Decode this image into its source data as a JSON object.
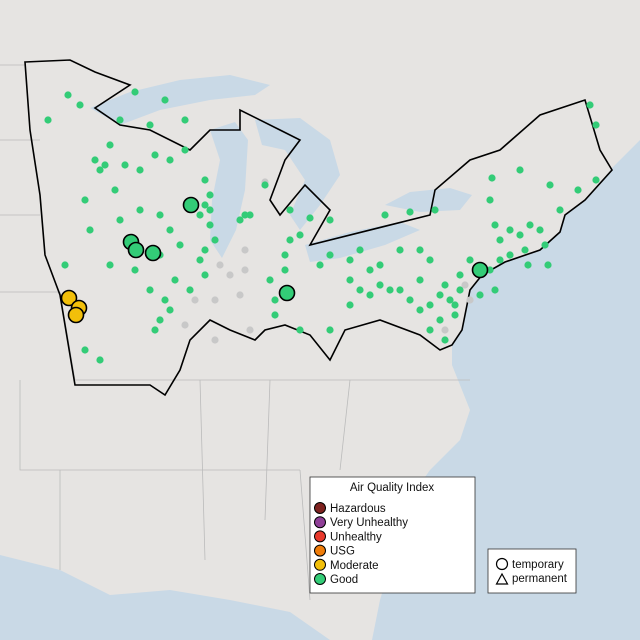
{
  "legend": {
    "title": "Air Quality Index",
    "items": [
      {
        "label": "Hazardous",
        "color": "#7e2320"
      },
      {
        "label": "Very Unhealthy",
        "color": "#8f3f97"
      },
      {
        "label": "Unhealthy",
        "color": "#e8392c"
      },
      {
        "label": "USG",
        "color": "#f07d0a"
      },
      {
        "label": "Moderate",
        "color": "#f2bf0a"
      },
      {
        "label": "Good",
        "color": "#33cc77"
      }
    ]
  },
  "shape_legend": {
    "items": [
      "temporary",
      "permanent"
    ]
  }
}
